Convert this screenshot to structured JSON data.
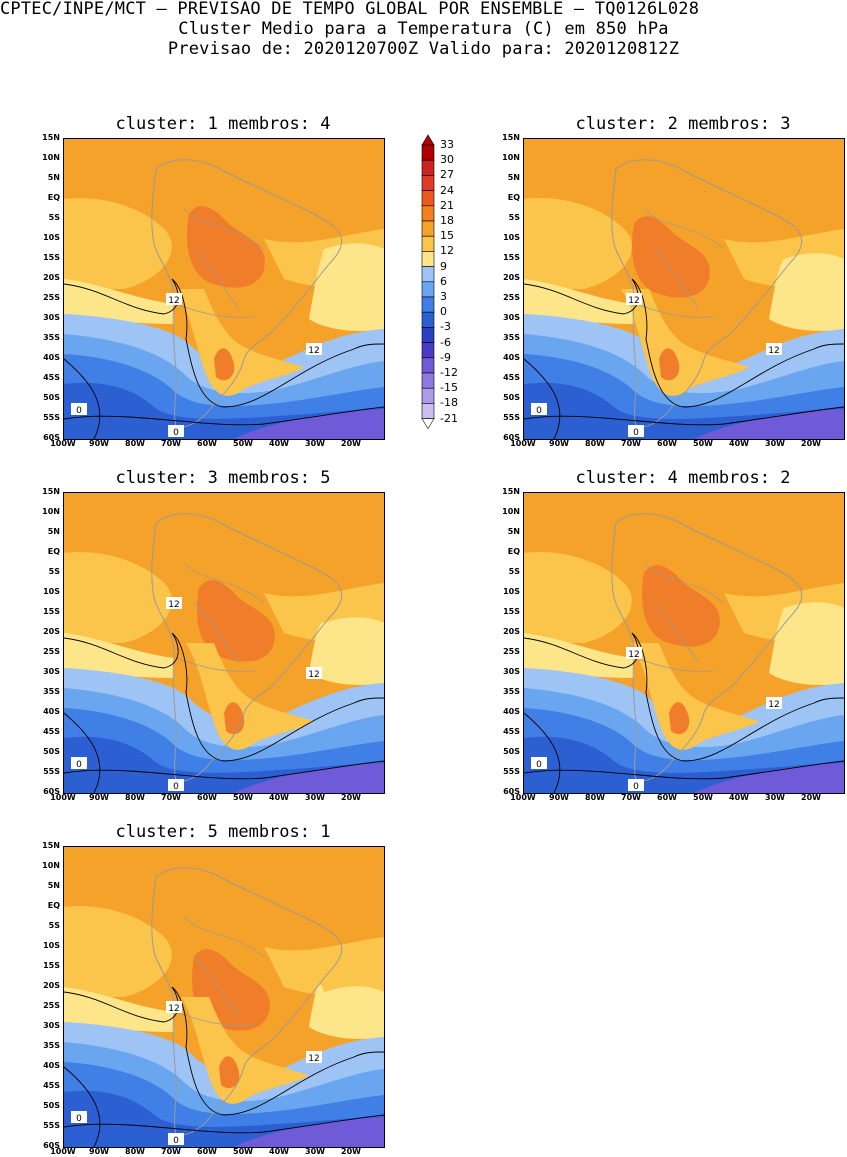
{
  "header": {
    "line1": "CPTEC/INPE/MCT – PREVISAO DE TEMPO GLOBAL POR ENSEMBLE – TQ0126L028",
    "line2": "Cluster Medio para a Temperatura (C) em 850 hPa",
    "line3": "Previsao de: 2020120700Z   Valido para: 2020120812Z"
  },
  "axes": {
    "lat_labels": [
      "15N",
      "10N",
      "5N",
      "EQ",
      "5S",
      "10S",
      "15S",
      "20S",
      "25S",
      "30S",
      "35S",
      "40S",
      "45S",
      "50S",
      "55S",
      "60S"
    ],
    "lon_labels": [
      "100W",
      "90W",
      "80W",
      "70W",
      "60W",
      "50W",
      "40W",
      "30W",
      "20W"
    ]
  },
  "contour_labels": {
    "twelve": "12",
    "zero": "0"
  },
  "panels": [
    {
      "title": "cluster: 1   membros: 4"
    },
    {
      "title": "cluster: 2   membros: 3"
    },
    {
      "title": "cluster: 3   membros: 5"
    },
    {
      "title": "cluster: 4   membros: 2"
    },
    {
      "title": "cluster: 5   membros: 1"
    }
  ],
  "colorbar": {
    "labels": [
      "33",
      "30",
      "27",
      "24",
      "21",
      "18",
      "15",
      "12",
      "9",
      "6",
      "3",
      "0",
      "-3",
      "-6",
      "-9",
      "-12",
      "-15",
      "-18",
      "-21"
    ],
    "colors": [
      "#b00000",
      "#cc2222",
      "#e03a2a",
      "#ee5a1e",
      "#f47f1c",
      "#f5a22a",
      "#fbc44a",
      "#fde58a",
      "#9ec3f5",
      "#6aa6f0",
      "#3f7fe6",
      "#2c5fd2",
      "#2a3fc0",
      "#4a3bc6",
      "#6f5ad8",
      "#8f7ae2",
      "#ad9cea",
      "#cbbff2"
    ]
  },
  "colors": {
    "orange": "#f5a22a",
    "light_orange": "#fbc44a",
    "yellow": "#fde58a",
    "hot": "#f07d2a",
    "lightblue": "#9ec3f5",
    "blue": "#6aa6f0",
    "midblue": "#3f7fe6",
    "deepblue": "#2c5fd2",
    "purple": "#6f5ad8",
    "gray_coast": "#9a9a9a"
  }
}
